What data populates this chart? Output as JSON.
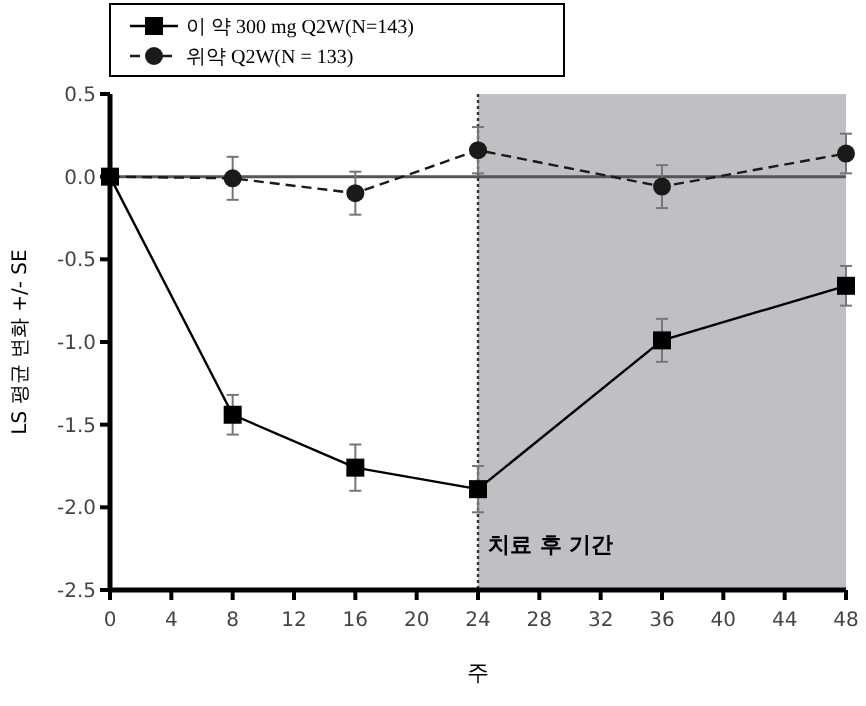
{
  "chart_data": {
    "type": "line",
    "xlabel": "주",
    "ylabel": "LS 평균 변화 +/- SE",
    "x": [
      0,
      8,
      16,
      24,
      36,
      48
    ],
    "series": [
      {
        "name": "이 약 300 mg Q2W(N=143)",
        "color": "#000000",
        "marker": "square",
        "line_style": "solid",
        "values": [
          0,
          -1.44,
          -1.76,
          -1.89,
          -0.99,
          -0.66
        ],
        "errors": [
          0,
          0.12,
          0.14,
          0.14,
          0.13,
          0.12
        ]
      },
      {
        "name": "위약 Q2W(N = 133)",
        "color": "#1a1a1a",
        "marker": "circle",
        "line_style": "dashed",
        "values": [
          0,
          -0.01,
          -0.1,
          0.16,
          -0.06,
          0.14
        ],
        "errors": [
          0,
          0.13,
          0.13,
          0.14,
          0.13,
          0.12
        ]
      }
    ],
    "xlim": [
      0,
      48
    ],
    "xticks": [
      0,
      4,
      8,
      12,
      16,
      20,
      24,
      28,
      32,
      36,
      40,
      44,
      48
    ],
    "ylim": [
      -2.5,
      0.5
    ],
    "yticks": [
      {
        "value": 0.5,
        "label": "0.5"
      },
      {
        "value": 0,
        "label": "0.0"
      },
      {
        "value": -0.5,
        "label": "-0.5"
      },
      {
        "value": -1,
        "label": "-1.0"
      },
      {
        "value": -1.5,
        "label": "-1.5"
      },
      {
        "value": -2,
        "label": "-2.0"
      },
      {
        "value": -2.5,
        "label": "-2.5"
      }
    ],
    "bands": [
      {
        "axis": "x",
        "from": 24,
        "to": 48,
        "label": "치료 후 기간",
        "color": "#c0c0c4"
      }
    ],
    "ref_lines": [
      {
        "axis": "y",
        "value": 0,
        "color": "#555555",
        "line_style": "solid"
      },
      {
        "axis": "x",
        "value": 24,
        "color": "#333333",
        "line_style": "dotted"
      }
    ],
    "legend": "top",
    "grid": false
  }
}
